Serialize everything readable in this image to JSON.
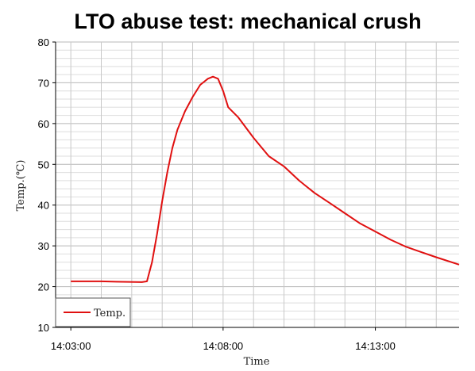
{
  "chart_data": {
    "type": "line",
    "title": "LTO abuse test: mechanical crush",
    "xlabel": "Time",
    "ylabel": "Temp.(℃)",
    "x_tick_labels": [
      "14:03:00",
      "14:08:00",
      "14:13:00"
    ],
    "x_ticks": [
      "14:03:00",
      "14:08:00",
      "14:13:00"
    ],
    "xlim": [
      "14:02:30",
      "14:15:45"
    ],
    "ylim": [
      10,
      80
    ],
    "y_ticks": [
      10,
      20,
      30,
      40,
      50,
      60,
      70,
      80
    ],
    "grid": true,
    "legend_position": "bottom-left",
    "series": [
      {
        "name": "Temp.",
        "color": "#e01010",
        "points": [
          [
            "14:03:00",
            21.3
          ],
          [
            "14:04:00",
            21.3
          ],
          [
            "14:04:30",
            21.2
          ],
          [
            "14:05:20",
            21.1
          ],
          [
            "14:05:30",
            21.3
          ],
          [
            "14:05:40",
            26.0
          ],
          [
            "14:05:50",
            33.0
          ],
          [
            "14:06:00",
            41.0
          ],
          [
            "14:06:10",
            48.0
          ],
          [
            "14:06:20",
            54.0
          ],
          [
            "14:06:30",
            58.5
          ],
          [
            "14:06:45",
            63.0
          ],
          [
            "14:07:00",
            66.5
          ],
          [
            "14:07:15",
            69.5
          ],
          [
            "14:07:30",
            71.0
          ],
          [
            "14:07:40",
            71.5
          ],
          [
            "14:07:50",
            71.0
          ],
          [
            "14:08:00",
            68.0
          ],
          [
            "14:08:10",
            64.0
          ],
          [
            "14:08:30",
            61.5
          ],
          [
            "14:09:00",
            56.5
          ],
          [
            "14:09:30",
            52.0
          ],
          [
            "14:10:00",
            49.5
          ],
          [
            "14:10:30",
            46.0
          ],
          [
            "14:11:00",
            43.0
          ],
          [
            "14:11:30",
            40.5
          ],
          [
            "14:12:00",
            38.0
          ],
          [
            "14:12:30",
            35.5
          ],
          [
            "14:13:00",
            33.5
          ],
          [
            "14:13:30",
            31.5
          ],
          [
            "14:14:00",
            29.8
          ],
          [
            "14:14:30",
            28.5
          ],
          [
            "14:15:00",
            27.2
          ],
          [
            "14:15:45",
            25.4
          ]
        ]
      }
    ]
  }
}
